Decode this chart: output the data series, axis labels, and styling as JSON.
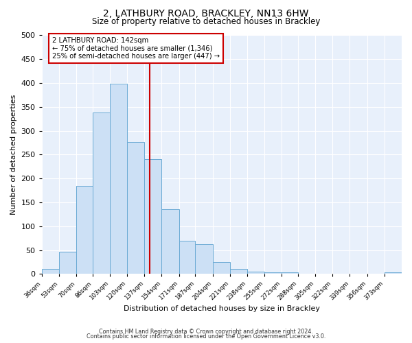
{
  "title": "2, LATHBURY ROAD, BRACKLEY, NN13 6HW",
  "subtitle": "Size of property relative to detached houses in Brackley",
  "xlabel": "Distribution of detached houses by size in Brackley",
  "ylabel": "Number of detached properties",
  "bar_color": "#cce0f5",
  "bar_edge_color": "#6aaad4",
  "bin_edges": [
    36,
    53,
    70,
    86,
    103,
    120,
    137,
    154,
    171,
    187,
    204,
    221,
    238,
    255,
    272,
    288,
    305,
    322,
    339,
    356,
    373,
    390
  ],
  "bar_heights": [
    10,
    46,
    184,
    338,
    398,
    276,
    240,
    136,
    69,
    62,
    25,
    11,
    5,
    3,
    3,
    0,
    0,
    0,
    0,
    0,
    4
  ],
  "vline_x": 142,
  "vline_color": "#cc0000",
  "annotation_title": "2 LATHBURY ROAD: 142sqm",
  "annotation_line1": "← 75% of detached houses are smaller (1,346)",
  "annotation_line2": "25% of semi-detached houses are larger (447) →",
  "annotation_box_color": "#ffffff",
  "annotation_box_edge": "#cc0000",
  "ylim": [
    0,
    500
  ],
  "background_color": "#e8f0fb",
  "footer1": "Contains HM Land Registry data © Crown copyright and database right 2024.",
  "footer2": "Contains public sector information licensed under the Open Government Licence v3.0.",
  "tick_labels": [
    "36sqm",
    "53sqm",
    "70sqm",
    "86sqm",
    "103sqm",
    "120sqm",
    "137sqm",
    "154sqm",
    "171sqm",
    "187sqm",
    "204sqm",
    "221sqm",
    "238sqm",
    "255sqm",
    "272sqm",
    "288sqm",
    "305sqm",
    "322sqm",
    "339sqm",
    "356sqm",
    "373sqm"
  ]
}
